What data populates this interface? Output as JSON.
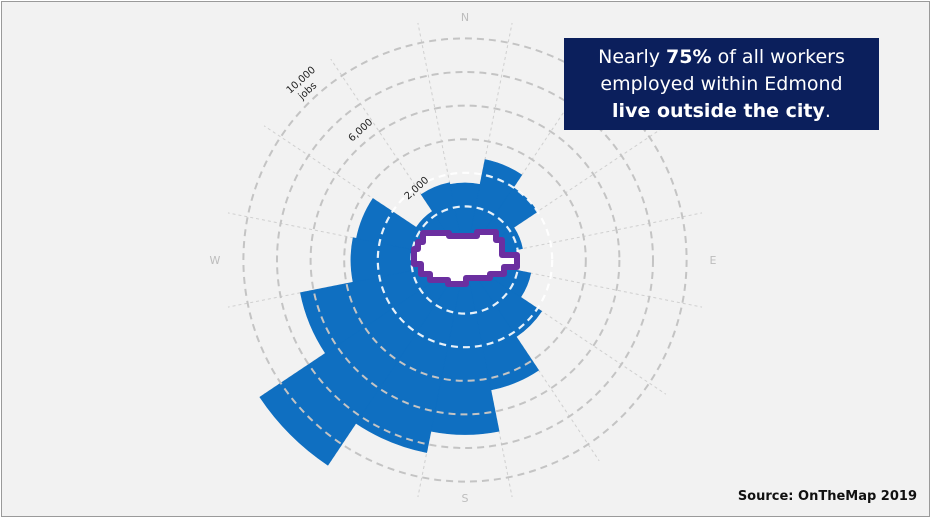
{
  "callout": {
    "line1_pre": "Nearly ",
    "line1_bold": "75%",
    "line1_post": " of all workers",
    "line2": "employed within Edmond",
    "line3_bold": "live outside the city",
    "line3_post": "."
  },
  "source": "Source: OnTheMap 2019",
  "colors": {
    "background": "#f2f2f2",
    "wedge": "#0f6fc1",
    "city_outline": "#6b2fa0",
    "callout_bg": "#0b1f5c",
    "ring": "#c4c4c4",
    "spoke": "#cfcfcf"
  },
  "chart_data": {
    "type": "radial-bar",
    "unit": "jobs",
    "directions": [
      "N",
      "NNE",
      "NE",
      "ENE",
      "E",
      "ESE",
      "SE",
      "SSE",
      "S",
      "SSW",
      "SW",
      "WSW",
      "W",
      "WNW",
      "NW",
      "NNW"
    ],
    "values": [
      3400,
      4900,
      4000,
      2300,
      1900,
      2800,
      4300,
      6700,
      9200,
      10500,
      13500,
      8800,
      5600,
      5400,
      2300,
      3500
    ],
    "rings": [
      2000,
      4000,
      6000,
      8000,
      10000,
      12000
    ],
    "ring_labels": [
      {
        "value": 2000,
        "text": "2,000"
      },
      {
        "value": 6000,
        "text": "6,000"
      },
      {
        "value": 10000,
        "text": "10,000",
        "unit": "jobs"
      }
    ],
    "compass": [
      "N",
      "E",
      "S",
      "W"
    ]
  }
}
